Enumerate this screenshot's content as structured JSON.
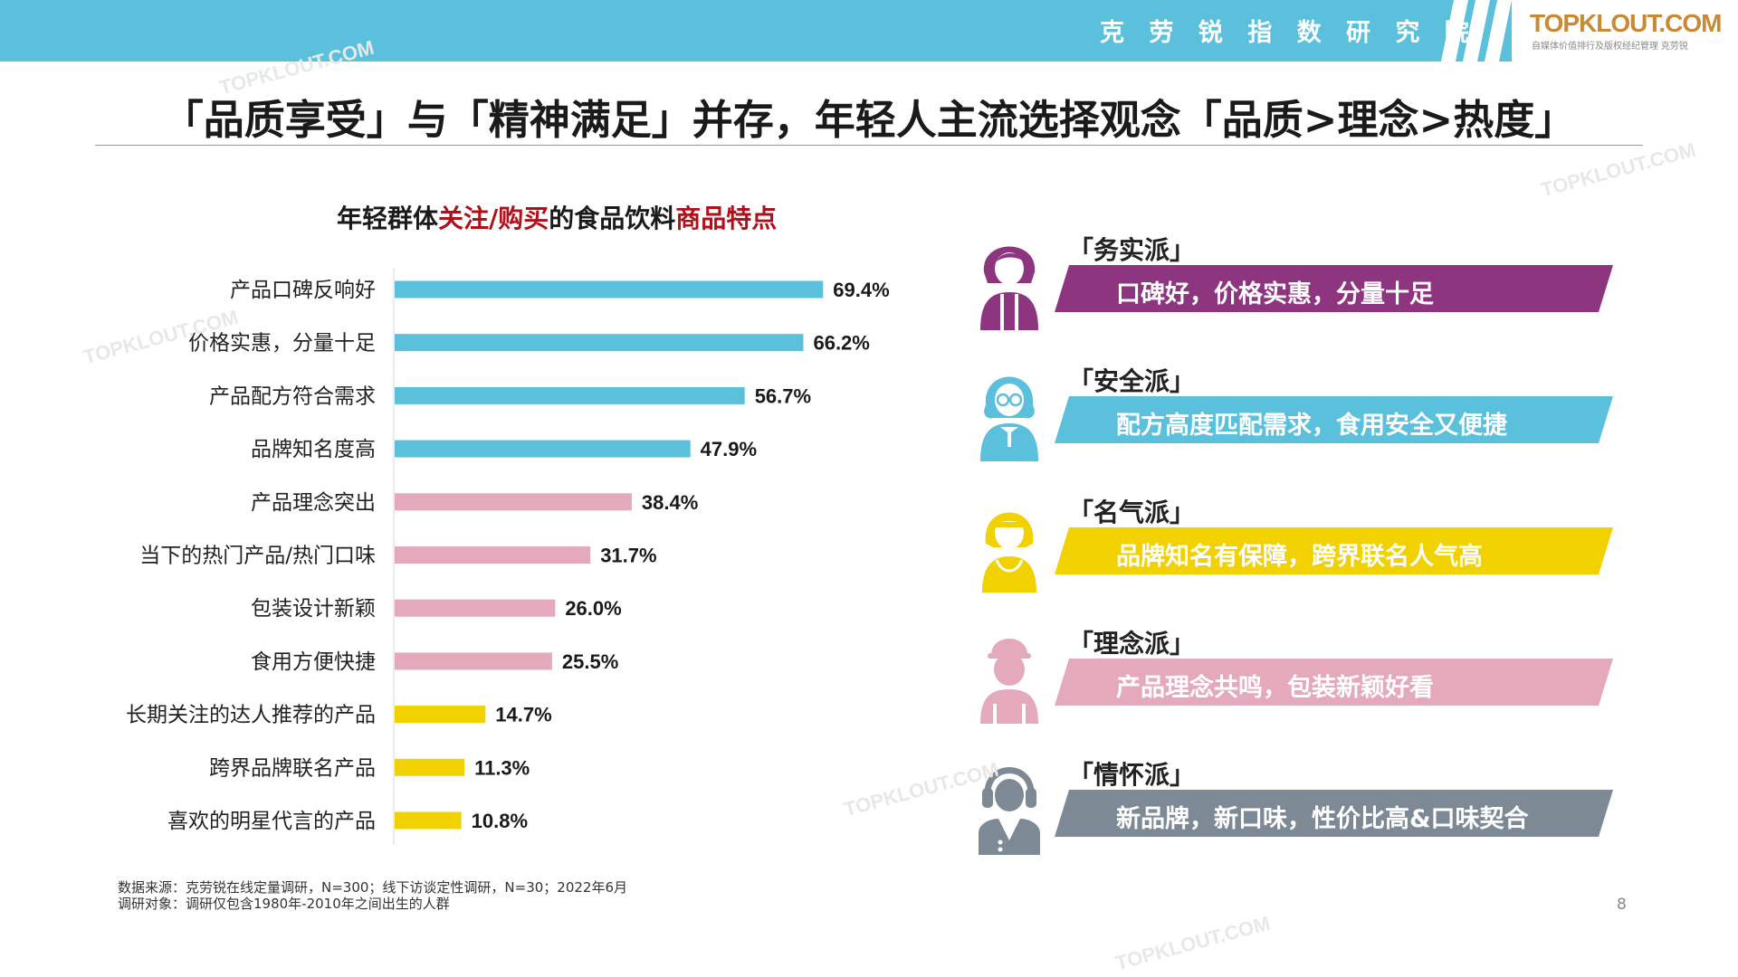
{
  "header": {
    "org_name": "克 劳 锐 指 数 研 究 院",
    "logo": "TOPKLOUT.COM",
    "logo_sub": "自媒体价值排行及版权经纪管理 克劳锐",
    "bar_color": "#5bc0db"
  },
  "page_title": "「品质享受」与「精神满足」并存，年轻人主流选择观念「品质>理念>热度」",
  "chart_title": {
    "prefix": "年轻群体",
    "highlight1": "关注/购买",
    "middle": "的食品饮料",
    "highlight2": "商品特点"
  },
  "chart_data": {
    "type": "bar",
    "orientation": "horizontal",
    "title": "年轻群体关注/购买的食品饮料商品特点",
    "unit": "%",
    "xlim": [
      0,
      100
    ],
    "categories": [
      "产品口碑反响好",
      "价格实惠，分量十足",
      "产品配方符合需求",
      "品牌知名度高",
      "产品理念突出",
      "当下的热门产品/热门口味",
      "包装设计新颖",
      "食用方便快捷",
      "长期关注的达人推荐的产品",
      "跨界品牌联名产品",
      "喜欢的明星代言的产品"
    ],
    "values": [
      69.4,
      66.2,
      56.7,
      47.9,
      38.4,
      31.7,
      26.0,
      25.5,
      14.7,
      11.3,
      10.8
    ],
    "labels": [
      "69.4%",
      "66.2%",
      "56.7%",
      "47.9%",
      "38.4%",
      "31.7%",
      "26.0%",
      "25.5%",
      "14.7%",
      "11.3%",
      "10.8%"
    ],
    "groups": [
      0,
      0,
      0,
      0,
      1,
      1,
      1,
      1,
      2,
      2,
      2
    ],
    "group_colors": [
      "#5bc0db",
      "#e4a9bb",
      "#f2d100"
    ]
  },
  "personas": [
    {
      "tag": "「务实派」",
      "text": "口碑好，价格实惠，分量十足",
      "color": "#8e3580",
      "icon": "woman-icon"
    },
    {
      "tag": "「安全派」",
      "text": "配方高度匹配需求，食用安全又便捷",
      "color": "#5bc0db",
      "icon": "woman-glasses-icon"
    },
    {
      "tag": "「名气派」",
      "text": "品牌知名有保障，跨界联名人气高",
      "color": "#f2d100",
      "icon": "girl-icon"
    },
    {
      "tag": "「理念派」",
      "text": "产品理念共鸣，包装新颖好看",
      "color": "#e4a9bb",
      "icon": "boy-cap-icon"
    },
    {
      "tag": "「情怀派」",
      "text": "新品牌，新口味，性价比高&口味契合",
      "color": "#7d8995",
      "icon": "man-headphones-icon"
    }
  ],
  "footnotes": {
    "source": "数据来源：克劳锐在线定量调研，N=300；线下访谈定性调研，N=30；2022年6月",
    "scope": "调研对象：调研仅包含1980年-2010年之间出生的人群"
  },
  "page_number": "8",
  "watermark": "TOPKLOUT.COM"
}
